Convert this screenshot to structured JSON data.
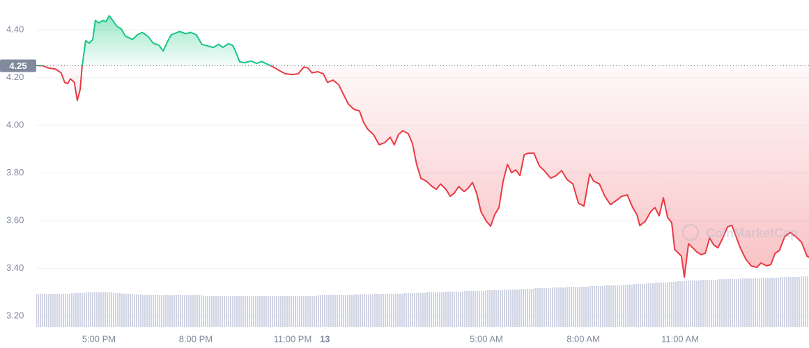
{
  "chart_data": {
    "type": "line",
    "x": [
      15.06,
      15.27,
      15.45,
      15.66,
      15.83,
      15.94,
      16.03,
      16.12,
      16.24,
      16.33,
      16.42,
      16.48,
      16.59,
      16.7,
      16.81,
      16.89,
      17.0,
      17.13,
      17.22,
      17.32,
      17.43,
      17.56,
      17.69,
      17.82,
      18.04,
      18.19,
      18.34,
      18.51,
      18.68,
      18.86,
      18.99,
      19.12,
      19.24,
      19.5,
      19.68,
      19.85,
      20.02,
      20.19,
      20.37,
      20.54,
      20.71,
      20.84,
      21.01,
      21.14,
      21.23,
      21.36,
      21.53,
      21.71,
      21.88,
      22.05,
      22.22,
      22.4,
      22.61,
      22.78,
      23.0,
      23.17,
      23.35,
      23.48,
      23.6,
      23.78,
      23.95,
      24.08,
      24.25,
      24.43,
      24.6,
      24.73,
      24.9,
      25.07,
      25.2,
      25.33,
      25.5,
      25.68,
      25.85,
      26.02,
      26.15,
      26.28,
      26.41,
      26.58,
      26.71,
      26.84,
      26.97,
      27.14,
      27.32,
      27.45,
      27.58,
      27.75,
      27.88,
      28.01,
      28.14,
      28.31,
      28.44,
      28.57,
      28.7,
      28.83,
      29.0,
      29.13,
      29.26,
      29.39,
      29.52,
      29.65,
      29.78,
      29.91,
      30.04,
      30.17,
      30.3,
      30.47,
      30.64,
      30.81,
      30.99,
      31.16,
      31.33,
      31.5,
      31.68,
      31.85,
      32.02,
      32.2,
      32.32,
      32.5,
      32.67,
      32.84,
      33.02,
      33.19,
      33.36,
      33.53,
      33.66,
      33.75,
      33.92,
      34.09,
      34.22,
      34.35,
      34.48,
      34.61,
      34.74,
      34.83,
      34.91,
      35.04,
      35.13,
      35.26,
      35.39,
      35.52,
      35.65,
      35.78,
      35.91,
      36.04,
      36.17,
      36.3,
      36.47,
      36.6,
      36.73,
      36.86,
      37.03,
      37.2,
      37.38,
      37.5,
      37.68,
      37.81,
      37.94,
      38.07,
      38.24,
      38.41,
      38.58,
      38.76,
      38.93,
      38.99
    ],
    "values": [
      4.251,
      4.25,
      4.24,
      4.236,
      4.22,
      4.18,
      4.175,
      4.195,
      4.18,
      4.105,
      4.15,
      4.245,
      4.356,
      4.345,
      4.36,
      4.44,
      4.43,
      4.44,
      4.435,
      4.46,
      4.44,
      4.415,
      4.405,
      4.375,
      4.36,
      4.38,
      4.39,
      4.375,
      4.345,
      4.336,
      4.312,
      4.35,
      4.38,
      4.394,
      4.385,
      4.39,
      4.38,
      4.34,
      4.333,
      4.327,
      4.34,
      4.327,
      4.342,
      4.336,
      4.312,
      4.266,
      4.263,
      4.27,
      4.26,
      4.268,
      4.256,
      4.245,
      4.228,
      4.216,
      4.213,
      4.216,
      4.245,
      4.24,
      4.22,
      4.225,
      4.216,
      4.18,
      4.19,
      4.17,
      4.123,
      4.088,
      4.067,
      4.06,
      4.012,
      3.983,
      3.962,
      3.918,
      3.927,
      3.95,
      3.918,
      3.962,
      3.977,
      3.965,
      3.924,
      3.836,
      3.778,
      3.766,
      3.743,
      3.731,
      3.754,
      3.731,
      3.702,
      3.716,
      3.743,
      3.722,
      3.737,
      3.76,
      3.714,
      3.638,
      3.597,
      3.577,
      3.626,
      3.655,
      3.766,
      3.836,
      3.801,
      3.813,
      3.789,
      3.877,
      3.883,
      3.883,
      3.83,
      3.807,
      3.778,
      3.789,
      3.81,
      3.772,
      3.754,
      3.673,
      3.661,
      3.796,
      3.766,
      3.754,
      3.702,
      3.667,
      3.684,
      3.702,
      3.708,
      3.655,
      3.626,
      3.579,
      3.597,
      3.638,
      3.655,
      3.62,
      3.696,
      3.614,
      3.591,
      3.48,
      3.468,
      3.451,
      3.363,
      3.503,
      3.486,
      3.468,
      3.457,
      3.463,
      3.527,
      3.498,
      3.486,
      3.521,
      3.574,
      3.58,
      3.533,
      3.486,
      3.439,
      3.41,
      3.404,
      3.422,
      3.41,
      3.416,
      3.463,
      3.474,
      3.533,
      3.55,
      3.533,
      3.509,
      3.451,
      3.445
    ],
    "volume": [
      48,
      48,
      48,
      48,
      48,
      48,
      48,
      49,
      49,
      49,
      49,
      49,
      50,
      50,
      50,
      50,
      50,
      50,
      50,
      50,
      49,
      49,
      48,
      48,
      47,
      47,
      46,
      46,
      46,
      46,
      46,
      46,
      46,
      46,
      46,
      46,
      46,
      45,
      45,
      45,
      45,
      45,
      45,
      45,
      45,
      45,
      45,
      45,
      45,
      45,
      45,
      45,
      45,
      45,
      45,
      45,
      45,
      45,
      45,
      46,
      46,
      46,
      46,
      46,
      46,
      46,
      47,
      47,
      47,
      47,
      48,
      48,
      48,
      48,
      48,
      48,
      49,
      49,
      49,
      49,
      49,
      50,
      50,
      50,
      50,
      51,
      51,
      51,
      51,
      52,
      52,
      52,
      52,
      52,
      53,
      53,
      53,
      53,
      54,
      54,
      54,
      54,
      55,
      55,
      55,
      56,
      56,
      56,
      57,
      57,
      57,
      58,
      58,
      58,
      58,
      59,
      59,
      59,
      60,
      60,
      60,
      61,
      61,
      62,
      62,
      62,
      63,
      63,
      64,
      64,
      64,
      65,
      65,
      65,
      66,
      66,
      66,
      67,
      67,
      67,
      68,
      68,
      68,
      68,
      69,
      69,
      69,
      69,
      69,
      70,
      70,
      70,
      70,
      71,
      71,
      71,
      71,
      72,
      72,
      72,
      72,
      73,
      73,
      73
    ],
    "up_color": "#16c784",
    "down_color": "#ea3943",
    "volume_color": "#cfd3e3",
    "reference": {
      "value": 4.25,
      "label": "4.25"
    },
    "xlim": [
      15.06,
      38.99
    ],
    "xticks": [
      {
        "value": 17,
        "label": "5:00 PM"
      },
      {
        "value": 20,
        "label": "8:00 PM"
      },
      {
        "value": 23,
        "label": "11:00 PM"
      },
      {
        "value": 24,
        "label": "13"
      },
      {
        "value": 29,
        "label": "5:00 AM"
      },
      {
        "value": 32,
        "label": "8:00 AM"
      },
      {
        "value": 35,
        "label": "11:00 AM"
      }
    ],
    "ylim": [
      3.153,
      4.526
    ],
    "yticks": [
      {
        "value": 3.2,
        "label": "3.20"
      },
      {
        "value": 3.4,
        "label": "3.40"
      },
      {
        "value": 3.6,
        "label": "3.60"
      },
      {
        "value": 3.8,
        "label": "3.80"
      },
      {
        "value": 4.0,
        "label": "4.00"
      },
      {
        "value": 4.2,
        "label": "4.20"
      },
      {
        "value": 4.4,
        "label": "4.40"
      }
    ],
    "grid": true,
    "watermark": "CoinMarketCap"
  }
}
